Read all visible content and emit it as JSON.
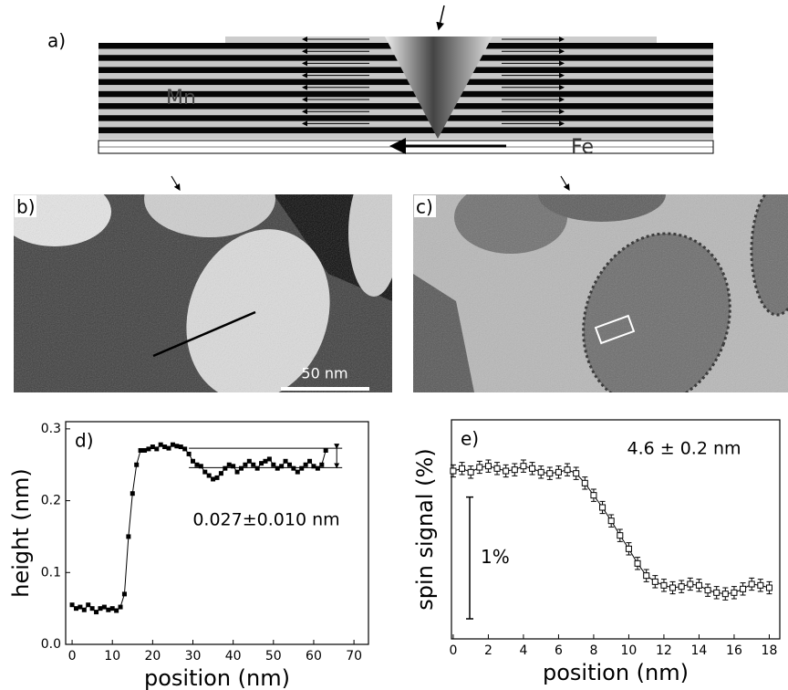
{
  "panel_a": {
    "label": "a)",
    "layer_top": "Mn",
    "layer_bottom": "Fe"
  },
  "panel_b": {
    "label": "b)",
    "scale_bar": "50 nm"
  },
  "panel_c": {
    "label": "c)"
  },
  "chart_data": [
    {
      "type": "line",
      "panel_label": "d)",
      "x_label": "position (nm)",
      "y_label": "height (nm)",
      "annotation": "0.027±0.010 nm",
      "x": [
        0,
        1,
        2,
        3,
        4,
        5,
        6,
        7,
        8,
        9,
        10,
        11,
        12,
        13,
        14,
        15,
        16,
        17,
        18,
        19,
        20,
        21,
        22,
        23,
        24,
        25,
        26,
        27,
        28,
        29,
        30,
        31,
        32,
        33,
        34,
        35,
        36,
        37,
        38,
        39,
        40,
        41,
        42,
        43,
        44,
        45,
        46,
        47,
        48,
        49,
        50,
        51,
        52,
        53,
        54,
        55,
        56,
        57,
        58,
        59,
        60,
        61,
        62,
        63
      ],
      "values": [
        0.055,
        0.05,
        0.052,
        0.048,
        0.055,
        0.05,
        0.045,
        0.05,
        0.052,
        0.048,
        0.05,
        0.047,
        0.052,
        0.07,
        0.15,
        0.21,
        0.25,
        0.27,
        0.27,
        0.272,
        0.275,
        0.272,
        0.278,
        0.275,
        0.273,
        0.278,
        0.276,
        0.275,
        0.272,
        0.265,
        0.255,
        0.25,
        0.248,
        0.24,
        0.235,
        0.23,
        0.232,
        0.238,
        0.245,
        0.25,
        0.248,
        0.24,
        0.245,
        0.25,
        0.255,
        0.25,
        0.245,
        0.252,
        0.255,
        0.258,
        0.25,
        0.245,
        0.248,
        0.255,
        0.25,
        0.245,
        0.24,
        0.245,
        0.25,
        0.255,
        0.248,
        0.245,
        0.25,
        0.27
      ],
      "color": "#000000",
      "reference_lines": [
        0.273,
        0.246
      ],
      "xlim": [
        -1.6,
        73.6
      ],
      "xticks": [
        0,
        10,
        20,
        30,
        40,
        50,
        60,
        70
      ],
      "ylim": [
        0,
        0.31
      ],
      "yticks": [
        {
          "value": 0,
          "label": "0.0"
        },
        0.1,
        0.2,
        0.3
      ]
    },
    {
      "type": "errorbar",
      "panel_label": "e)",
      "x_label": "position (nm)",
      "y_label": "spin signal (%)",
      "annotation": "4.6 ± 0.2 nm",
      "x": [
        0,
        0.5,
        1,
        1.5,
        2,
        2.5,
        3,
        3.5,
        4,
        4.5,
        5,
        5.5,
        6,
        6.5,
        7,
        7.5,
        8,
        8.5,
        9,
        9.5,
        10,
        10.5,
        11,
        11.5,
        12,
        12.5,
        13,
        13.5,
        14,
        14.5,
        15,
        15.5,
        16,
        16.5,
        17,
        17.5,
        18
      ],
      "values": [
        1.38,
        1.4,
        1.37,
        1.41,
        1.42,
        1.4,
        1.38,
        1.39,
        1.42,
        1.4,
        1.37,
        1.36,
        1.37,
        1.39,
        1.36,
        1.28,
        1.18,
        1.08,
        0.97,
        0.85,
        0.74,
        0.62,
        0.52,
        0.47,
        0.44,
        0.42,
        0.43,
        0.45,
        0.44,
        0.4,
        0.38,
        0.37,
        0.38,
        0.41,
        0.45,
        0.44,
        0.42
      ],
      "errors": [
        0.05,
        0.05,
        0.05,
        0.05,
        0.05,
        0.05,
        0.05,
        0.05,
        0.05,
        0.05,
        0.05,
        0.05,
        0.05,
        0.05,
        0.05,
        0.05,
        0.05,
        0.05,
        0.05,
        0.05,
        0.05,
        0.05,
        0.05,
        0.05,
        0.05,
        0.05,
        0.05,
        0.05,
        0.05,
        0.05,
        0.05,
        0.05,
        0.05,
        0.05,
        0.05,
        0.05,
        0.05
      ],
      "color": "#000000",
      "scale_bar": {
        "label": "1%",
        "from": 0.165,
        "to": 1.165
      },
      "xlim": [
        -0.1,
        18.6
      ],
      "xticks": [
        0,
        2,
        4,
        6,
        8,
        10,
        12,
        14,
        16,
        18
      ],
      "ylim": [
        0,
        1.8
      ]
    }
  ]
}
